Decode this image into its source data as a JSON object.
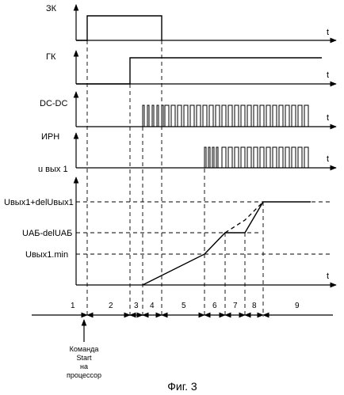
{
  "diagram": {
    "labels": {
      "zk": "ЗК",
      "gk": "ГК",
      "dcdc": "DC-DC",
      "irn": "ИРН",
      "uout": "u вых 1"
    },
    "t_label": "t",
    "levels": {
      "high": "Uвых1+delUвых1",
      "mid": "UАБ-delUАБ",
      "low": "Uвых1.min"
    },
    "intervals": [
      "1",
      "2",
      "3",
      "4",
      "5",
      "6",
      "7",
      "8",
      "9"
    ],
    "command": [
      "Команда",
      "Start",
      "на",
      "процессор"
    ],
    "caption": "Фиг. 3"
  }
}
